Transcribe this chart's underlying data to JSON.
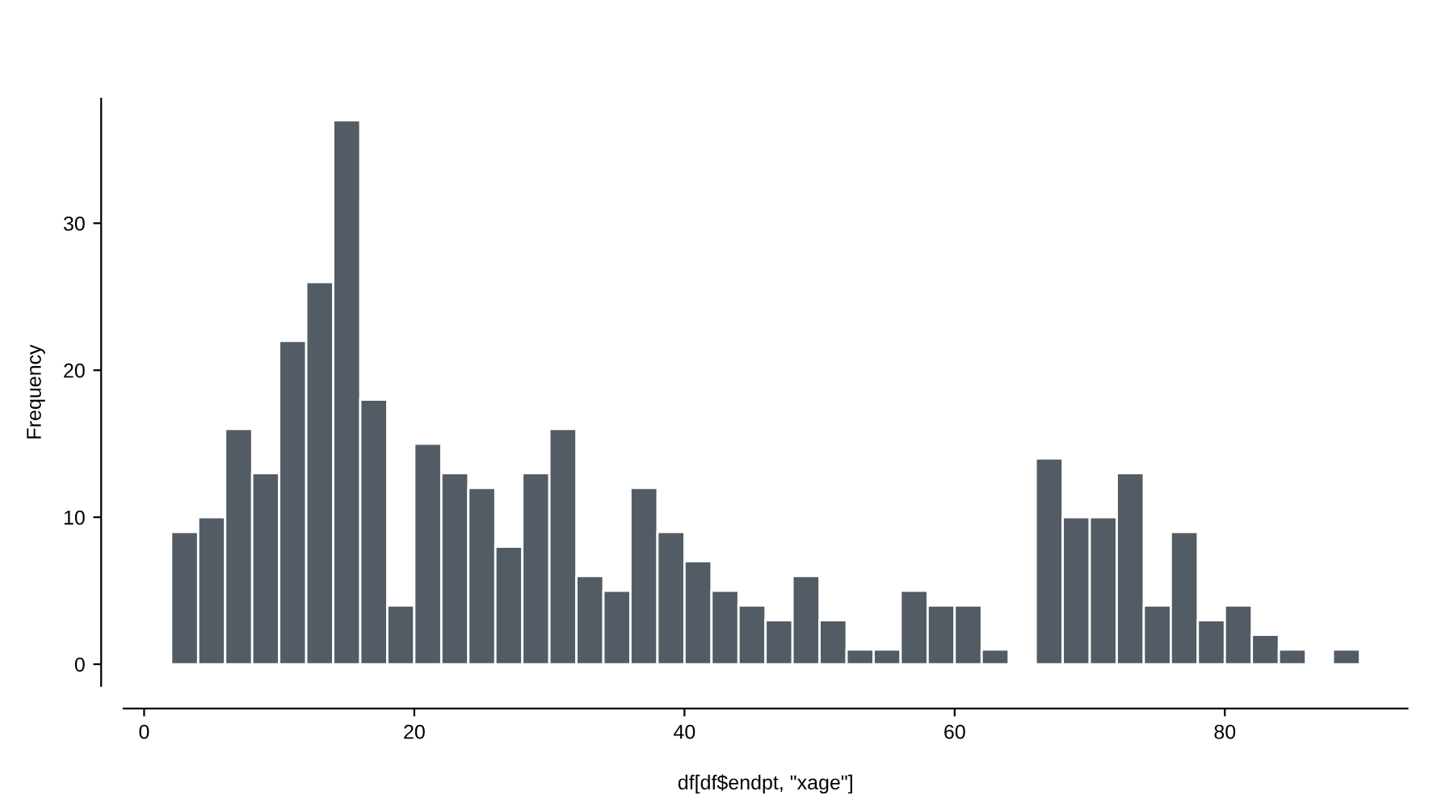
{
  "chart_data": {
    "type": "histogram",
    "xlabel": "df[df$endpt, \"xage\"]",
    "ylabel": "Frequency",
    "bins": [
      2,
      4,
      6,
      8,
      10,
      12,
      14,
      16,
      18,
      20,
      22,
      24,
      26,
      28,
      30,
      32,
      34,
      36,
      38,
      40,
      42,
      44,
      46,
      48,
      50,
      52,
      54,
      56,
      58,
      60,
      62,
      64,
      66,
      68,
      70,
      72,
      74,
      76,
      78,
      80,
      82,
      84,
      86,
      88,
      90
    ],
    "values": [
      9,
      10,
      16,
      13,
      22,
      26,
      37,
      18,
      4,
      15,
      13,
      12,
      8,
      13,
      16,
      6,
      5,
      12,
      9,
      7,
      5,
      4,
      3,
      6,
      3,
      1,
      1,
      5,
      4,
      4,
      1,
      0,
      14,
      10,
      10,
      13,
      4,
      9,
      3,
      4,
      2,
      1,
      0,
      1
    ],
    "color": "#535c64",
    "xlim": [
      -1.52,
      93.52
    ],
    "ylim": [
      -1.48,
      38.48
    ],
    "xticks": [
      0,
      20,
      40,
      60,
      80
    ],
    "yticks": [
      0,
      10,
      20,
      30
    ],
    "grid": false
  }
}
